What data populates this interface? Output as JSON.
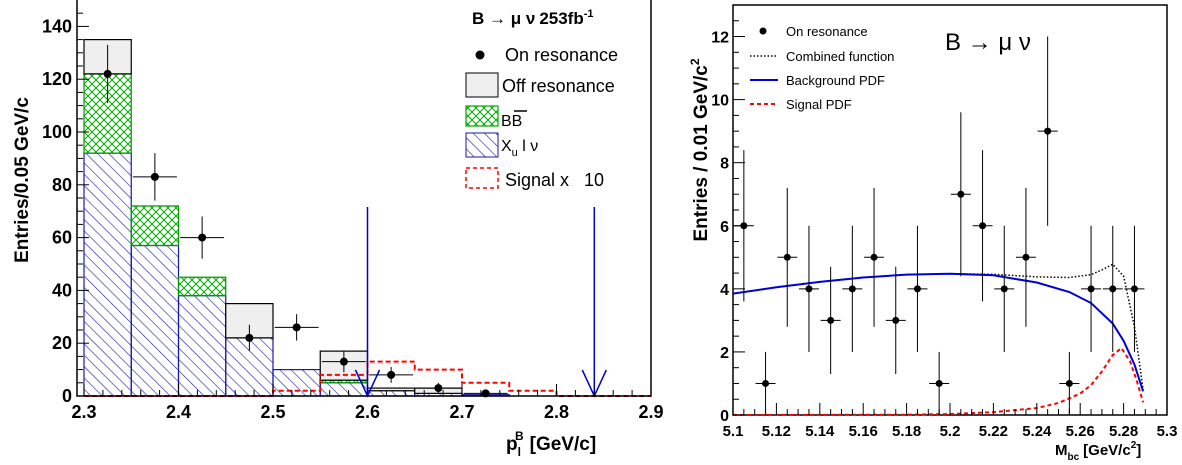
{
  "chart_data": [
    {
      "type": "bar",
      "title": "B → μ ν 253fb⁻¹",
      "title_main": "B → μ ν",
      "title_lumi": "253fb",
      "title_lumi_exp": "-1",
      "xlabel": "p_l^B [GeV/c]",
      "xlabel_main": "p",
      "xlabel_sub": "l",
      "xlabel_sup": "B",
      "xlabel_unit": "[GeV/c]",
      "ylabel": "Entries/0.05 GeV/c",
      "xlim": [
        2.3,
        2.9
      ],
      "ylim": [
        0,
        150
      ],
      "xticks": [
        "2.3",
        "2.4",
        "2.5",
        "2.6",
        "2.7",
        "2.8",
        "2.9"
      ],
      "yticks": [
        "0",
        "20",
        "40",
        "60",
        "80",
        "100",
        "120",
        "140"
      ],
      "bin_edges": [
        2.3,
        2.35,
        2.4,
        2.45,
        2.5,
        2.55,
        2.6,
        2.65,
        2.7,
        2.75,
        2.8,
        2.85,
        2.9
      ],
      "stack": [
        {
          "name": "X_u l ν",
          "legend": "X",
          "legend_sub": "u",
          "legend_rest": " l ν",
          "fill": "hatch-blue",
          "color": "#1a1aaa",
          "values": [
            92,
            57,
            38,
            22,
            10,
            5,
            2,
            1,
            0.5,
            0,
            0,
            0
          ]
        },
        {
          "name": "BB̄",
          "legend": "BB",
          "fill": "crosshatch-green",
          "color": "#009900",
          "values": [
            30,
            15,
            7,
            0,
            0,
            1,
            0,
            0,
            0,
            0,
            0,
            0
          ]
        },
        {
          "name": "Off resonance",
          "legend": "Off resonance",
          "fill": "#efefef",
          "color": "#000000",
          "values": [
            13,
            0,
            0,
            13,
            0,
            11,
            1,
            2,
            0,
            0,
            0,
            0
          ]
        }
      ],
      "signal": {
        "name": "Signal x 10",
        "legend": "Signal x   10",
        "color": "#ff0000",
        "values": [
          0,
          0,
          0,
          0,
          2,
          8,
          13,
          10,
          5,
          2,
          0,
          0
        ]
      },
      "points": {
        "name": "On resonance",
        "legend": "On resonance",
        "x": [
          2.325,
          2.375,
          2.425,
          2.475,
          2.525,
          2.575,
          2.625,
          2.675,
          2.725
        ],
        "y": [
          122,
          83,
          60,
          22,
          26,
          13,
          8,
          3,
          1
        ],
        "yerr": [
          11,
          9,
          8,
          5,
          5,
          4,
          3,
          2,
          1
        ]
      },
      "cut_arrows_x": [
        2.6,
        2.84
      ],
      "cut_arrow_color": "#0000cc"
    },
    {
      "type": "scatter",
      "title": "B → μ ν",
      "xlabel": "M_bc [GeV/c²]",
      "xlabel_main": "M",
      "xlabel_sub": "bc",
      "xlabel_unit_pre": "[GeV/c",
      "xlabel_unit_sup": "2",
      "xlabel_unit_post": "]",
      "ylabel": "Entries / 0.01 GeV/c²",
      "ylabel_main": "Entries / 0.01 GeV/c",
      "ylabel_sup": "2",
      "xlim": [
        5.1,
        5.3
      ],
      "ylim": [
        0,
        13
      ],
      "xticks": [
        "5.1",
        "5.12",
        "5.14",
        "5.16",
        "5.18",
        "5.2",
        "5.22",
        "5.24",
        "5.26",
        "5.28",
        "5.3"
      ],
      "yticks": [
        "0",
        "2",
        "4",
        "6",
        "8",
        "10",
        "12"
      ],
      "points": {
        "name": "On resonance",
        "legend": "On resonance",
        "x": [
          5.105,
          5.115,
          5.125,
          5.135,
          5.145,
          5.155,
          5.165,
          5.175,
          5.185,
          5.195,
          5.205,
          5.215,
          5.225,
          5.235,
          5.245,
          5.255,
          5.265,
          5.275,
          5.285
        ],
        "y": [
          6,
          1,
          5,
          4,
          3,
          4,
          5,
          3,
          4,
          1,
          7,
          6,
          4,
          5,
          9,
          1,
          4,
          4,
          4
        ],
        "yerr_up": [
          2.4,
          1.0,
          2.2,
          2.0,
          1.7,
          2.0,
          2.2,
          1.7,
          2.0,
          1.0,
          2.6,
          2.4,
          2.0,
          2.2,
          3.0,
          1.0,
          2.0,
          2.0,
          2.0
        ],
        "yerr_down": [
          2.4,
          1.0,
          2.2,
          2.0,
          1.7,
          2.0,
          2.2,
          1.7,
          2.0,
          1.0,
          2.6,
          2.4,
          2.0,
          2.2,
          3.0,
          1.0,
          2.0,
          2.0,
          2.0
        ]
      },
      "curves": [
        {
          "name": "Combined function",
          "legend": "Combined function",
          "style": "dotted",
          "color": "#000000",
          "x": [
            5.1,
            5.12,
            5.14,
            5.16,
            5.18,
            5.2,
            5.22,
            5.24,
            5.255,
            5.265,
            5.27,
            5.275,
            5.28,
            5.285,
            5.289
          ],
          "y": [
            3.85,
            4.05,
            4.22,
            4.36,
            4.45,
            4.48,
            4.46,
            4.38,
            4.36,
            4.45,
            4.6,
            4.78,
            4.4,
            2.8,
            0.8
          ]
        },
        {
          "name": "Background PDF",
          "legend": "Background PDF",
          "style": "solid",
          "color": "#0000dd",
          "x": [
            5.1,
            5.12,
            5.14,
            5.16,
            5.18,
            5.2,
            5.22,
            5.24,
            5.255,
            5.265,
            5.275,
            5.28,
            5.285,
            5.289
          ],
          "y": [
            3.85,
            4.05,
            4.22,
            4.36,
            4.45,
            4.48,
            4.43,
            4.2,
            3.9,
            3.55,
            2.9,
            2.35,
            1.6,
            0.75
          ]
        },
        {
          "name": "Signal PDF",
          "legend": "Signal PDF",
          "style": "dashed",
          "color": "#ff0000",
          "x": [
            5.1,
            5.18,
            5.2,
            5.22,
            5.24,
            5.25,
            5.26,
            5.265,
            5.27,
            5.275,
            5.279,
            5.283,
            5.286,
            5.289
          ],
          "y": [
            0,
            0.01,
            0.03,
            0.09,
            0.22,
            0.38,
            0.68,
            0.95,
            1.38,
            1.9,
            2.12,
            1.7,
            1.1,
            0.4
          ]
        }
      ]
    }
  ]
}
